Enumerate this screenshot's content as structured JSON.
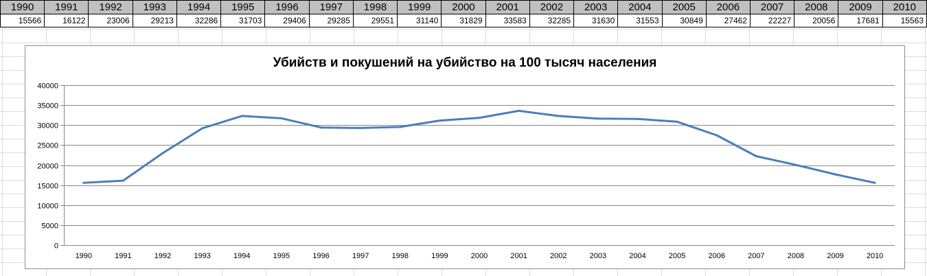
{
  "table": {
    "years": [
      "1990",
      "1991",
      "1992",
      "1993",
      "1994",
      "1995",
      "1996",
      "1997",
      "1998",
      "1999",
      "2000",
      "2001",
      "2002",
      "2003",
      "2004",
      "2005",
      "2006",
      "2007",
      "2008",
      "2009",
      "2010"
    ],
    "values": [
      "15566",
      "16122",
      "23006",
      "29213",
      "32286",
      "31703",
      "29406",
      "29285",
      "29551",
      "31140",
      "31829",
      "33583",
      "32285",
      "31630",
      "31553",
      "30849",
      "27462",
      "22227",
      "20056",
      "17681",
      "15563"
    ]
  },
  "chart_data": {
    "type": "line",
    "title": "Убийств и покушений на убийство на 100 тысяч населения",
    "categories": [
      "1990",
      "1991",
      "1992",
      "1993",
      "1994",
      "1995",
      "1996",
      "1997",
      "1998",
      "1999",
      "2000",
      "2001",
      "2002",
      "2003",
      "2004",
      "2005",
      "2006",
      "2007",
      "2008",
      "2009",
      "2010"
    ],
    "series": [
      {
        "values": [
          15566,
          16122,
          23006,
          29213,
          32286,
          31703,
          29406,
          29285,
          29551,
          31140,
          31829,
          33583,
          32285,
          31630,
          31553,
          30849,
          27462,
          22227,
          20056,
          17681,
          15563
        ],
        "color": "#4a7ebb"
      }
    ],
    "ylim": [
      0,
      40000
    ],
    "yticks": [
      "0",
      "5000",
      "10000",
      "15000",
      "20000",
      "25000",
      "30000",
      "35000",
      "40000"
    ],
    "grid": true
  },
  "colors": {
    "header_fill": "#c0c0c0",
    "line": "#4a7ebb",
    "gridline": "#878787"
  }
}
